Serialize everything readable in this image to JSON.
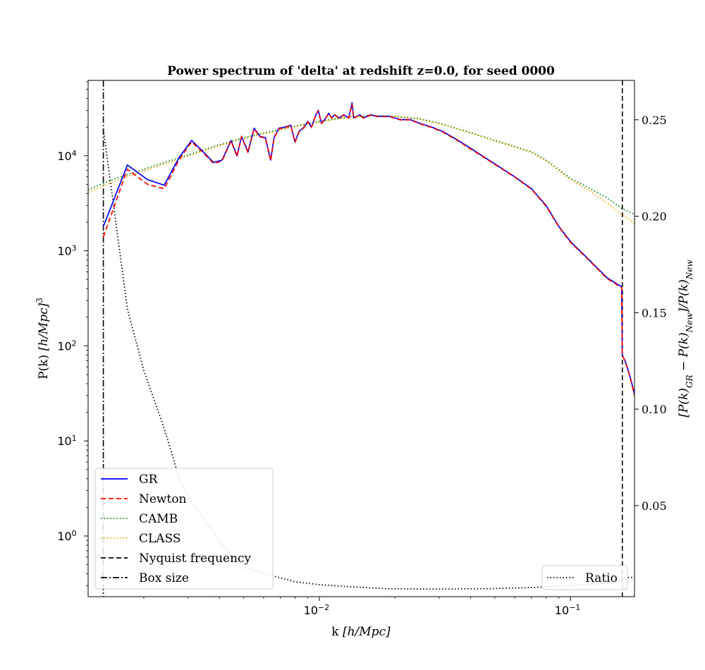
{
  "chart_data": {
    "type": "line",
    "title": "Power spectrum of 'delta' at redshift z=0.0, for seed 0000",
    "xlabel_prefix": "k ",
    "xlabel_unit": "[h/Mpc]",
    "ylabel_prefix": "P(k) ",
    "ylabel_unit": "[h/Mpc]",
    "ylabel_exp": "3",
    "y2label": "[P(k)GR − P(k)New]/P(k)New",
    "xscale": "log",
    "yscale": "log",
    "xlim": [
      0.0012,
      0.18
    ],
    "ylim": [
      0.23,
      62000
    ],
    "y2lim": [
      0.0028,
      0.2704
    ],
    "x_ticks": [
      {
        "value": 0.01,
        "label": "10",
        "exp": "−2"
      },
      {
        "value": 0.1,
        "label": "10",
        "exp": "−1"
      }
    ],
    "y_ticks": [
      {
        "value": 1,
        "label": "10",
        "exp": "0"
      },
      {
        "value": 10,
        "label": "10",
        "exp": "1"
      },
      {
        "value": 100,
        "label": "10",
        "exp": "2"
      },
      {
        "value": 1000,
        "label": "10",
        "exp": "3"
      },
      {
        "value": 10000,
        "label": "10",
        "exp": "4"
      }
    ],
    "y2_ticks": [
      {
        "value": 0.05,
        "label": "0.05"
      },
      {
        "value": 0.1,
        "label": "0.10"
      },
      {
        "value": 0.15,
        "label": "0.15"
      },
      {
        "value": 0.2,
        "label": "0.20"
      },
      {
        "value": 0.25,
        "label": "0.25"
      }
    ],
    "vlines": [
      {
        "name": "Nyquist frequency",
        "x": 0.161,
        "style": "dashed",
        "color": "#000000"
      },
      {
        "name": "Box size",
        "x": 0.00138,
        "style": "dashdot",
        "color": "#000000"
      }
    ],
    "series": [
      {
        "name": "GR",
        "color": "#0000ff",
        "style": "solid",
        "axis": "left",
        "points": [
          [
            0.00138,
            1800
          ],
          [
            0.00172,
            8000
          ],
          [
            0.00207,
            5600
          ],
          [
            0.00241,
            4900
          ],
          [
            0.00276,
            9500
          ],
          [
            0.0031,
            14500
          ],
          [
            0.00345,
            11000
          ],
          [
            0.00379,
            8500
          ],
          [
            0.0041,
            9000
          ],
          [
            0.00445,
            14500
          ],
          [
            0.0047,
            10000
          ],
          [
            0.0049,
            16000
          ],
          [
            0.0052,
            11000
          ],
          [
            0.0055,
            19500
          ],
          [
            0.0058,
            16000
          ],
          [
            0.0061,
            15500
          ],
          [
            0.0064,
            9000
          ],
          [
            0.0066,
            15500
          ],
          [
            0.0069,
            19500
          ],
          [
            0.0073,
            20000
          ],
          [
            0.0077,
            21000
          ],
          [
            0.008,
            14000
          ],
          [
            0.0083,
            18000
          ],
          [
            0.0087,
            20000
          ],
          [
            0.009,
            23000
          ],
          [
            0.0093,
            20000
          ],
          [
            0.0097,
            27000
          ],
          [
            0.0099,
            30000
          ],
          [
            0.0102,
            22000
          ],
          [
            0.0105,
            24000
          ],
          [
            0.0109,
            28000
          ],
          [
            0.0112,
            25000
          ],
          [
            0.0115,
            27000
          ],
          [
            0.012,
            25000
          ],
          [
            0.0125,
            27000
          ],
          [
            0.0131,
            25000
          ],
          [
            0.0135,
            36000
          ],
          [
            0.0137,
            25000
          ],
          [
            0.0145,
            27000
          ],
          [
            0.015,
            25000
          ],
          [
            0.016,
            27000
          ],
          [
            0.017,
            26000
          ],
          [
            0.019,
            26000
          ],
          [
            0.021,
            24000
          ],
          [
            0.023,
            24000
          ],
          [
            0.025,
            22000
          ],
          [
            0.028,
            20000
          ],
          [
            0.031,
            18000
          ],
          [
            0.035,
            15000
          ],
          [
            0.04,
            12000
          ],
          [
            0.045,
            9800
          ],
          [
            0.05,
            8200
          ],
          [
            0.06,
            6000
          ],
          [
            0.07,
            4500
          ],
          [
            0.08,
            3000
          ],
          [
            0.09,
            1800
          ],
          [
            0.1,
            1250
          ],
          [
            0.12,
            780
          ],
          [
            0.14,
            520
          ],
          [
            0.155,
            440
          ],
          [
            0.16,
            420
          ],
          [
            0.161,
            80
          ],
          [
            0.165,
            70
          ],
          [
            0.17,
            55
          ],
          [
            0.175,
            42
          ],
          [
            0.18,
            31
          ]
        ]
      },
      {
        "name": "Newton",
        "color": "#ff0000",
        "style": "dashed",
        "axis": "left",
        "points": [
          [
            0.00138,
            1400
          ],
          [
            0.00172,
            7200
          ],
          [
            0.00207,
            5000
          ],
          [
            0.00241,
            4500
          ],
          [
            0.00276,
            9000
          ],
          [
            0.0031,
            14000
          ],
          [
            0.00345,
            10700
          ],
          [
            0.00379,
            8300
          ],
          [
            0.0041,
            8800
          ],
          [
            0.00445,
            14300
          ],
          [
            0.0047,
            9800
          ],
          [
            0.0049,
            15800
          ],
          [
            0.0052,
            10800
          ],
          [
            0.0055,
            19200
          ],
          [
            0.0058,
            15800
          ],
          [
            0.0061,
            15300
          ],
          [
            0.0064,
            8800
          ],
          [
            0.0066,
            15300
          ],
          [
            0.0069,
            19200
          ],
          [
            0.0073,
            19800
          ],
          [
            0.0077,
            20800
          ],
          [
            0.008,
            13800
          ],
          [
            0.0083,
            17800
          ],
          [
            0.0087,
            19800
          ],
          [
            0.009,
            22800
          ],
          [
            0.0093,
            19800
          ],
          [
            0.0097,
            26800
          ],
          [
            0.0099,
            29800
          ],
          [
            0.0102,
            21800
          ],
          [
            0.0105,
            23800
          ],
          [
            0.0109,
            27800
          ],
          [
            0.0112,
            24800
          ],
          [
            0.0115,
            26800
          ],
          [
            0.012,
            24800
          ],
          [
            0.0125,
            26800
          ],
          [
            0.0131,
            24800
          ],
          [
            0.0135,
            35000
          ],
          [
            0.0137,
            24800
          ],
          [
            0.0145,
            26800
          ],
          [
            0.015,
            24800
          ],
          [
            0.016,
            26800
          ],
          [
            0.017,
            25800
          ],
          [
            0.019,
            25800
          ],
          [
            0.021,
            23800
          ],
          [
            0.023,
            23800
          ],
          [
            0.025,
            21800
          ],
          [
            0.028,
            19800
          ],
          [
            0.031,
            17800
          ],
          [
            0.035,
            14800
          ],
          [
            0.04,
            11800
          ],
          [
            0.045,
            9700
          ],
          [
            0.05,
            8100
          ],
          [
            0.06,
            5950
          ],
          [
            0.07,
            4450
          ],
          [
            0.08,
            2950
          ],
          [
            0.09,
            1780
          ],
          [
            0.1,
            1230
          ],
          [
            0.12,
            770
          ],
          [
            0.14,
            510
          ],
          [
            0.155,
            430
          ],
          [
            0.16,
            410
          ],
          [
            0.161,
            80
          ],
          [
            0.165,
            69
          ],
          [
            0.17,
            54
          ],
          [
            0.175,
            41
          ],
          [
            0.18,
            30
          ]
        ]
      },
      {
        "name": "CAMB",
        "color": "#008000",
        "style": "dotted",
        "axis": "left",
        "points": [
          [
            0.0012,
            4400
          ],
          [
            0.0015,
            5600
          ],
          [
            0.002,
            7200
          ],
          [
            0.003,
            10200
          ],
          [
            0.004,
            13000
          ],
          [
            0.005,
            15500
          ],
          [
            0.007,
            19000
          ],
          [
            0.01,
            23000
          ],
          [
            0.013,
            25500
          ],
          [
            0.016,
            26500
          ],
          [
            0.02,
            26000
          ],
          [
            0.025,
            24500
          ],
          [
            0.03,
            22000
          ],
          [
            0.04,
            17500
          ],
          [
            0.05,
            14500
          ],
          [
            0.06,
            12500
          ],
          [
            0.07,
            11000
          ],
          [
            0.08,
            9000
          ],
          [
            0.1,
            5800
          ],
          [
            0.12,
            4500
          ],
          [
            0.14,
            3600
          ],
          [
            0.16,
            2800
          ],
          [
            0.18,
            2400
          ]
        ]
      },
      {
        "name": "CLASS",
        "color": "#ffa500",
        "style": "dotted",
        "axis": "left",
        "points": [
          [
            0.0012,
            4100
          ],
          [
            0.0015,
            5300
          ],
          [
            0.002,
            6900
          ],
          [
            0.003,
            9900
          ],
          [
            0.004,
            12700
          ],
          [
            0.005,
            15200
          ],
          [
            0.007,
            18700
          ],
          [
            0.01,
            22700
          ],
          [
            0.013,
            25200
          ],
          [
            0.016,
            26200
          ],
          [
            0.02,
            25800
          ],
          [
            0.025,
            24300
          ],
          [
            0.03,
            21800
          ],
          [
            0.04,
            17300
          ],
          [
            0.05,
            14300
          ],
          [
            0.06,
            12300
          ],
          [
            0.07,
            10800
          ],
          [
            0.08,
            8800
          ],
          [
            0.1,
            5600
          ],
          [
            0.12,
            4200
          ],
          [
            0.14,
            3200
          ],
          [
            0.16,
            2400
          ],
          [
            0.18,
            1950
          ]
        ]
      },
      {
        "name": "Ratio",
        "color": "#000000",
        "style": "dotted",
        "axis": "right",
        "points": [
          [
            0.00138,
            0.245
          ],
          [
            0.0015,
            0.21
          ],
          [
            0.00172,
            0.152
          ],
          [
            0.002,
            0.12
          ],
          [
            0.00241,
            0.09
          ],
          [
            0.0028,
            0.062
          ],
          [
            0.0031,
            0.052
          ],
          [
            0.0035,
            0.042
          ],
          [
            0.004,
            0.032
          ],
          [
            0.0045,
            0.024
          ],
          [
            0.005,
            0.018
          ],
          [
            0.006,
            0.015
          ],
          [
            0.007,
            0.0125
          ],
          [
            0.008,
            0.0105
          ],
          [
            0.01,
            0.009
          ],
          [
            0.013,
            0.008
          ],
          [
            0.018,
            0.007
          ],
          [
            0.025,
            0.0068
          ],
          [
            0.035,
            0.0068
          ],
          [
            0.05,
            0.007
          ],
          [
            0.07,
            0.0075
          ],
          [
            0.09,
            0.0082
          ],
          [
            0.11,
            0.009
          ],
          [
            0.13,
            0.0095
          ],
          [
            0.15,
            0.0102
          ],
          [
            0.161,
            0.0125
          ],
          [
            0.17,
            0.0127
          ],
          [
            0.18,
            0.0128
          ]
        ]
      }
    ],
    "legend_left": {
      "placement": "lower-left",
      "entries": [
        {
          "label": "GR",
          "color": "#0000ff",
          "style": "solid"
        },
        {
          "label": "Newton",
          "color": "#ff0000",
          "style": "dashed"
        },
        {
          "label": "CAMB",
          "color": "#008000",
          "style": "dotted"
        },
        {
          "label": "CLASS",
          "color": "#ffa500",
          "style": "dotted"
        },
        {
          "label": "Nyquist frequency",
          "color": "#000000",
          "style": "dashed"
        },
        {
          "label": "Box size",
          "color": "#000000",
          "style": "dashdot"
        }
      ]
    },
    "legend_right": {
      "placement": "lower-right",
      "entries": [
        {
          "label": "Ratio",
          "color": "#000000",
          "style": "dotted"
        }
      ]
    }
  }
}
